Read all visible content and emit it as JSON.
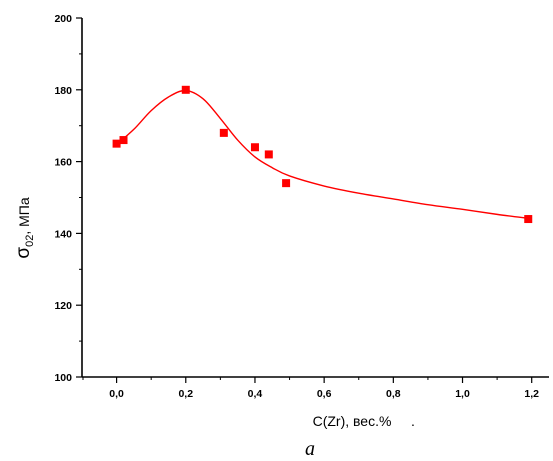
{
  "chart_data": {
    "type": "scatter",
    "xlabel": "C(Zr), вес.%",
    "xlabel_suffix": ".",
    "ylabel_main": "σ",
    "ylabel_sub": "02",
    "ylabel_rest": ", МПа",
    "caption": "a",
    "xlim": [
      -0.1,
      1.25
    ],
    "ylim": [
      100,
      200
    ],
    "x_ticks": [
      {
        "value": 0.0,
        "label": "0,0"
      },
      {
        "value": 0.2,
        "label": "0,2"
      },
      {
        "value": 0.4,
        "label": "0,4"
      },
      {
        "value": 0.6,
        "label": "0,6"
      },
      {
        "value": 0.8,
        "label": "0,8"
      },
      {
        "value": 1.0,
        "label": "1,0"
      },
      {
        "value": 1.2,
        "label": "1,2"
      }
    ],
    "y_ticks": [
      {
        "value": 100,
        "label": "100"
      },
      {
        "value": 120,
        "label": "120"
      },
      {
        "value": 140,
        "label": "140"
      },
      {
        "value": 160,
        "label": "160"
      },
      {
        "value": 180,
        "label": "180"
      },
      {
        "value": 200,
        "label": "200"
      }
    ],
    "points": [
      {
        "x": 0.0,
        "y": 165
      },
      {
        "x": 0.02,
        "y": 166
      },
      {
        "x": 0.2,
        "y": 180
      },
      {
        "x": 0.31,
        "y": 168
      },
      {
        "x": 0.4,
        "y": 164
      },
      {
        "x": 0.44,
        "y": 162
      },
      {
        "x": 0.49,
        "y": 154
      },
      {
        "x": 1.19,
        "y": 144
      }
    ],
    "fit_curve": [
      {
        "x": 0.0,
        "y": 164.8
      },
      {
        "x": 0.05,
        "y": 169.0
      },
      {
        "x": 0.1,
        "y": 174.2
      },
      {
        "x": 0.15,
        "y": 178.0
      },
      {
        "x": 0.2,
        "y": 179.8
      },
      {
        "x": 0.25,
        "y": 177.5
      },
      {
        "x": 0.3,
        "y": 172.0
      },
      {
        "x": 0.35,
        "y": 166.0
      },
      {
        "x": 0.4,
        "y": 161.3
      },
      {
        "x": 0.45,
        "y": 158.3
      },
      {
        "x": 0.5,
        "y": 156.0
      },
      {
        "x": 0.6,
        "y": 153.2
      },
      {
        "x": 0.7,
        "y": 151.2
      },
      {
        "x": 0.8,
        "y": 149.6
      },
      {
        "x": 0.9,
        "y": 148.0
      },
      {
        "x": 1.0,
        "y": 146.7
      },
      {
        "x": 1.1,
        "y": 145.3
      },
      {
        "x": 1.19,
        "y": 144.2
      }
    ],
    "colors": {
      "marker": "#ff0000",
      "line": "#ff0000",
      "axis": "#000000"
    },
    "grid": false
  }
}
